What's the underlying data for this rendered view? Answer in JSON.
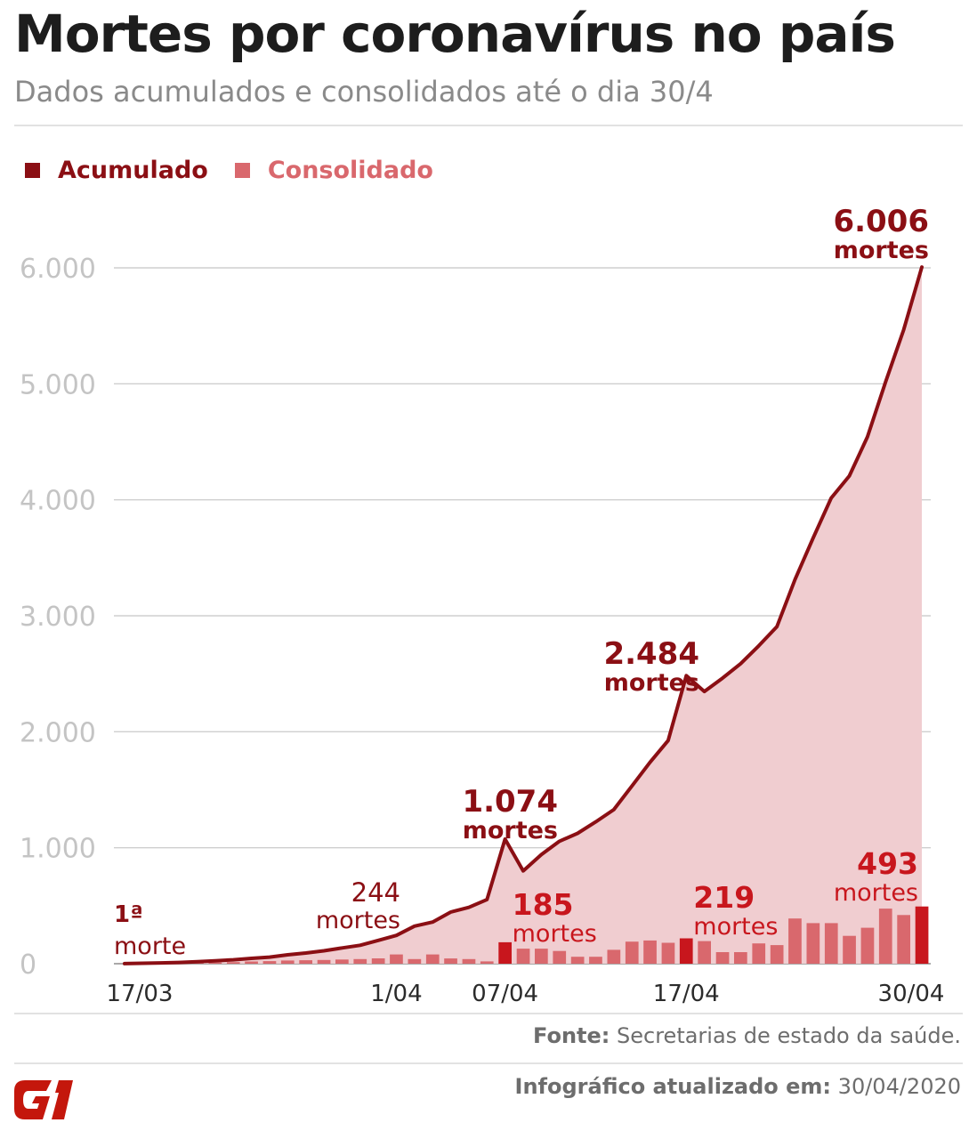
{
  "header": {
    "title": "Mortes por coronavírus no país",
    "subtitle": "Dados acumulados e consolidados até o dia 30/4"
  },
  "legend": {
    "items": [
      {
        "label": "Acumulado",
        "color": "#8b0f14"
      },
      {
        "label": "Consolidado",
        "color": "#d9686d"
      }
    ]
  },
  "colors": {
    "line": "#8b0f14",
    "area": "#f0cdd0",
    "bar": "#d9686d",
    "bar_highlight": "#c8161d",
    "grid": "#cfcfcf",
    "axis_text": "#c4c4c4",
    "date_text": "#2b2b2b",
    "bar_label": "#c8161d"
  },
  "chart_data": {
    "type": "area",
    "y_ticks": [
      {
        "value": 0,
        "label": "0"
      },
      {
        "value": 1000,
        "label": "1.000"
      },
      {
        "value": 2000,
        "label": "2.000"
      },
      {
        "value": 3000,
        "label": "3.000"
      },
      {
        "value": 4000,
        "label": "4.000"
      },
      {
        "value": 5000,
        "label": "5.000"
      },
      {
        "value": 6000,
        "label": "6.000"
      }
    ],
    "ylim": [
      0,
      6000
    ],
    "x_labels": [
      {
        "date": "17/03",
        "label": "17/03"
      },
      {
        "date": "01/04",
        "label": "1/04"
      },
      {
        "date": "07/04",
        "label": "07/04"
      },
      {
        "date": "17/04",
        "label": "17/04"
      },
      {
        "date": "30/04",
        "label": "30/04"
      }
    ],
    "series": [
      {
        "name": "Acumulado",
        "dates": [
          "17/03",
          "18/03",
          "19/03",
          "20/03",
          "21/03",
          "22/03",
          "23/03",
          "24/03",
          "25/03",
          "26/03",
          "27/03",
          "28/03",
          "29/03",
          "30/03",
          "31/03",
          "01/04",
          "02/04",
          "03/04",
          "04/04",
          "05/04",
          "06/04",
          "07/04",
          "08/04",
          "09/04",
          "10/04",
          "11/04",
          "12/04",
          "13/04",
          "14/04",
          "15/04",
          "16/04",
          "17/04",
          "18/04",
          "19/04",
          "20/04",
          "21/04",
          "22/04",
          "23/04",
          "24/04",
          "25/04",
          "26/04",
          "27/04",
          "28/04",
          "29/04",
          "30/04"
        ],
        "values": [
          1,
          4,
          7,
          11,
          18,
          25,
          34,
          46,
          57,
          77,
          92,
          111,
          136,
          159,
          201,
          244,
          324,
          359,
          445,
          486,
          553,
          1074,
          800,
          941,
          1056,
          1124,
          1223,
          1328,
          1532,
          1736,
          1924,
          2484,
          2347,
          2462,
          2587,
          2741,
          2906,
          3313,
          3670,
          4016,
          4205,
          4543,
          5017,
          5466,
          6006
        ]
      },
      {
        "name": "Consolidado",
        "dates": [
          "17/03",
          "18/03",
          "19/03",
          "20/03",
          "21/03",
          "22/03",
          "23/03",
          "24/03",
          "25/03",
          "26/03",
          "27/03",
          "28/03",
          "29/03",
          "30/03",
          "31/03",
          "01/04",
          "02/04",
          "03/04",
          "04/04",
          "05/04",
          "06/04",
          "07/04",
          "08/04",
          "09/04",
          "10/04",
          "11/04",
          "12/04",
          "13/04",
          "14/04",
          "15/04",
          "16/04",
          "17/04",
          "18/04",
          "19/04",
          "20/04",
          "21/04",
          "22/04",
          "23/04",
          "24/04",
          "25/04",
          "26/04",
          "27/04",
          "28/04",
          "29/04",
          "30/04"
        ],
        "values": [
          1,
          2,
          4,
          5,
          8,
          10,
          14,
          19,
          22,
          28,
          30,
          32,
          36,
          40,
          46,
          80,
          40,
          80,
          45,
          40,
          20,
          185,
          130,
          130,
          110,
          60,
          60,
          120,
          190,
          200,
          180,
          219,
          195,
          100,
          100,
          175,
          160,
          390,
          350,
          350,
          240,
          310,
          475,
          420,
          493
        ]
      }
    ],
    "highlight_bars": [
      "07/04",
      "17/04",
      "30/04"
    ],
    "annotations": [
      {
        "date": "17/03",
        "series": "Acumulado",
        "value_label": "1ª",
        "unit_label": "morte"
      },
      {
        "date": "01/04",
        "series": "Acumulado",
        "value_label": "244",
        "unit_label": "mortes"
      },
      {
        "date": "07/04",
        "series": "Acumulado",
        "value_label": "1.074",
        "unit_label": "mortes"
      },
      {
        "date": "17/04",
        "series": "Acumulado",
        "value_label": "2.484",
        "unit_label": "mortes"
      },
      {
        "date": "30/04",
        "series": "Acumulado",
        "value_label": "6.006",
        "unit_label": "mortes"
      },
      {
        "date": "07/04",
        "series": "Consolidado",
        "value_label": "185",
        "unit_label": "mortes"
      },
      {
        "date": "17/04",
        "series": "Consolidado",
        "value_label": "219",
        "unit_label": "mortes"
      },
      {
        "date": "30/04",
        "series": "Consolidado",
        "value_label": "493",
        "unit_label": "mortes"
      }
    ]
  },
  "footer": {
    "source_label": "Fonte:",
    "source_text": "Secretarias de estado da saúde.",
    "updated_label": "Infográfico atualizado em:",
    "updated_text": "30/04/2020",
    "logo_text": "G1",
    "logo_color": "#c4170c"
  }
}
